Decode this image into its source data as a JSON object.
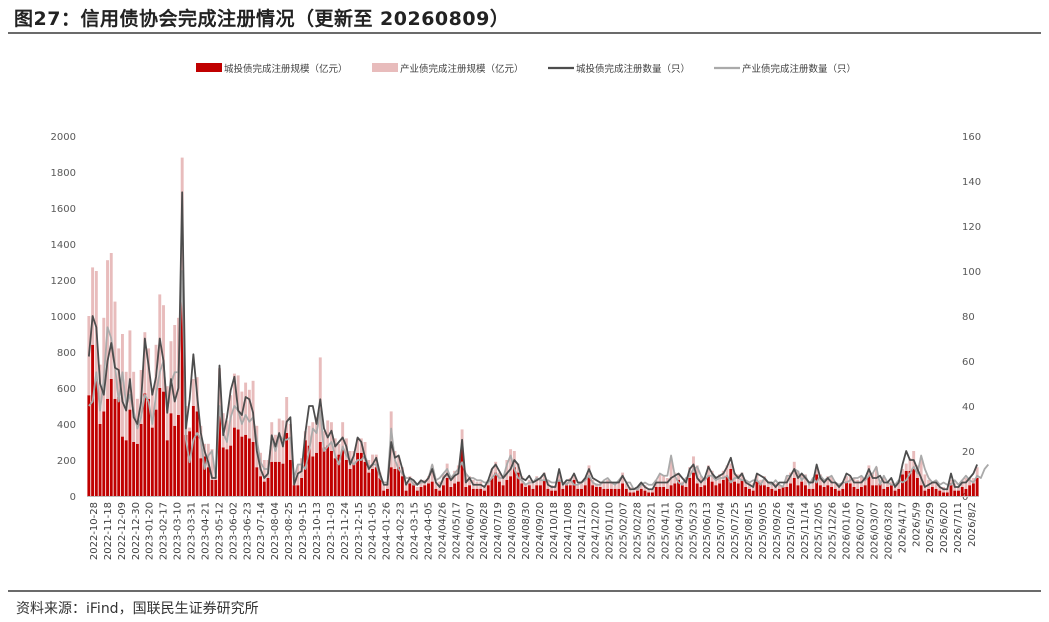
{
  "title": "图27：信用债协会完成注册情况（更新至 20260809）",
  "source": "资料来源：iFind，国联民生证券研究所",
  "chart_data": {
    "type": "bar+line",
    "stacked_bars": true,
    "legend_position": "top",
    "grid": false,
    "y_left": {
      "min": 0,
      "max": 2000,
      "ticks": [
        0,
        200,
        400,
        600,
        800,
        1000,
        1200,
        1400,
        1600,
        1800,
        2000
      ]
    },
    "y_right": {
      "min": 0,
      "max": 160,
      "ticks": [
        0,
        20,
        40,
        60,
        80,
        100,
        120,
        140,
        160
      ]
    },
    "x_tick_labels": [
      "2022-10-28",
      "2022-11-18",
      "2022-12-09",
      "2022-12-30",
      "2023-01-20",
      "2023-02-17",
      "2023-03-10",
      "2023-03-31",
      "2023-04-21",
      "2023-05-12",
      "2023-06-02",
      "2023-06-23",
      "2023-07-14",
      "2023-08-04",
      "2023-08-25",
      "2023-09-15",
      "2023-10-13",
      "2023-11-03",
      "2023-11-24",
      "2023-12-15",
      "2024-01-05",
      "2024-01-26",
      "2024-02-23",
      "2024-03-15",
      "2024-04-05",
      "2024/04/26",
      "2024/05/17",
      "2024/06/07",
      "2024/06/28",
      "2024/07/19",
      "2024/08/09",
      "2024/08/30",
      "2024/09/20",
      "2024/10/18",
      "2024/11/08",
      "2024/11/29",
      "2024/12/20",
      "2025/01/10",
      "2025/02/07",
      "2025/02/28",
      "2025/03/21",
      "2025/04/11",
      "2025/04/30",
      "2025/05/23",
      "2025/06/13",
      "2025/07/04",
      "2025/07/25",
      "2025/08/15",
      "2025/09/05",
      "2025/09/26",
      "2025/10/24",
      "2025/11/14",
      "2025/12/05",
      "2025/12/26",
      "2026/01/16",
      "2026/02/07",
      "2026/03/07",
      "2026/03/28",
      "2026/4/17",
      "2026/5/9",
      "2026/5/29",
      "2026/6/20",
      "2026/7/11",
      "2026/8/2"
    ],
    "series": [
      {
        "name": "城投债完成注册规模（亿元）",
        "kind": "bar",
        "axis": "left",
        "color": "#c00000",
        "values": [
          560,
          840,
          650,
          400,
          470,
          540,
          650,
          540,
          550,
          330,
          310,
          480,
          300,
          290,
          400,
          570,
          540,
          380,
          480,
          600,
          580,
          310,
          460,
          390,
          450,
          1190,
          340,
          360,
          500,
          470,
          210,
          220,
          160,
          90,
          90,
          450,
          270,
          260,
          280,
          380,
          370,
          330,
          340,
          320,
          300,
          160,
          110,
          80,
          100,
          190,
          190,
          190,
          180,
          350,
          200,
          60,
          60,
          100,
          310,
          280,
          220,
          240,
          300,
          270,
          280,
          250,
          210,
          230,
          260,
          200,
          150,
          180,
          240,
          240,
          190,
          130,
          150,
          160,
          100,
          30,
          40,
          160,
          150,
          160,
          110,
          30,
          70,
          60,
          30,
          50,
          60,
          70,
          80,
          40,
          30,
          60,
          100,
          50,
          70,
          80,
          270,
          50,
          60,
          40,
          40,
          40,
          30,
          60,
          100,
          130,
          80,
          60,
          90,
          110,
          160,
          130,
          70,
          50,
          60,
          40,
          60,
          60,
          90,
          40,
          30,
          30,
          80,
          40,
          60,
          60,
          90,
          40,
          40,
          60,
          110,
          60,
          50,
          50,
          40,
          40,
          40,
          40,
          40,
          70,
          40,
          20,
          20,
          30,
          40,
          30,
          20,
          20,
          50,
          50,
          50,
          40,
          60,
          70,
          90,
          60,
          50,
          100,
          130,
          70,
          50,
          60,
          110,
          80,
          60,
          70,
          90,
          110,
          150,
          80,
          70,
          90,
          50,
          40,
          30,
          80,
          70,
          60,
          50,
          40,
          30,
          40,
          50,
          50,
          70,
          100,
          60,
          80,
          60,
          40,
          40,
          120,
          60,
          50,
          60,
          50,
          40,
          30,
          40,
          80,
          70,
          50,
          40,
          50,
          60,
          110,
          60,
          60,
          70,
          40,
          50,
          60,
          30,
          40,
          120,
          140,
          140,
          150,
          100,
          60,
          30,
          40,
          50,
          40,
          30,
          20,
          20,
          70,
          30,
          30,
          50,
          40,
          60,
          70,
          100
        ]
      },
      {
        "name": "产业债完成注册规模（亿元）",
        "kind": "bar",
        "axis": "left",
        "color": "#e8bcbc",
        "values": [
          440,
          430,
          600,
          330,
          520,
          770,
          700,
          540,
          270,
          570,
          380,
          440,
          390,
          250,
          300,
          340,
          280,
          220,
          360,
          520,
          480,
          300,
          400,
          560,
          540,
          690,
          160,
          20,
          150,
          190,
          180,
          70,
          130,
          170,
          20,
          260,
          190,
          160,
          280,
          300,
          300,
          250,
          290,
          270,
          340,
          230,
          130,
          120,
          100,
          220,
          150,
          240,
          240,
          200,
          200,
          50,
          110,
          110,
          50,
          110,
          190,
          200,
          470,
          90,
          140,
          160,
          110,
          60,
          150,
          120,
          100,
          70,
          80,
          80,
          110,
          70,
          80,
          70,
          30,
          30,
          30,
          310,
          100,
          60,
          50,
          50,
          40,
          20,
          20,
          30,
          30,
          40,
          90,
          40,
          50,
          60,
          80,
          50,
          70,
          90,
          100,
          70,
          50,
          50,
          40,
          40,
          30,
          30,
          50,
          60,
          50,
          50,
          110,
          150,
          90,
          50,
          40,
          20,
          30,
          30,
          50,
          40,
          40,
          40,
          30,
          30,
          40,
          30,
          20,
          40,
          20,
          20,
          30,
          40,
          60,
          30,
          20,
          20,
          40,
          50,
          30,
          20,
          40,
          60,
          30,
          30,
          10,
          10,
          20,
          30,
          20,
          20,
          40,
          70,
          60,
          60,
          150,
          60,
          30,
          20,
          50,
          60,
          90,
          100,
          60,
          40,
          60,
          60,
          40,
          50,
          50,
          60,
          30,
          50,
          50,
          40,
          40,
          30,
          40,
          40,
          20,
          50,
          30,
          20,
          40,
          20,
          10,
          60,
          60,
          90,
          80,
          40,
          60,
          20,
          50,
          30,
          60,
          40,
          50,
          60,
          30,
          20,
          30,
          30,
          40,
          50,
          50,
          60,
          40,
          60,
          70,
          100,
          20,
          60,
          30,
          20,
          20,
          40,
          30,
          40,
          70,
          100,
          70,
          150,
          90,
          50,
          30,
          40,
          20,
          30,
          20,
          20,
          40,
          20,
          40,
          60,
          40,
          30,
          60,
          50,
          90,
          110
        ]
      },
      {
        "name": "城投债完成注册数量（只）",
        "kind": "line",
        "axis": "right",
        "color": "#4d4d4d",
        "values": [
          62,
          80,
          75,
          50,
          45,
          60,
          68,
          57,
          56,
          42,
          38,
          52,
          35,
          32,
          42,
          70,
          58,
          45,
          53,
          70,
          60,
          37,
          52,
          42,
          48,
          135,
          30,
          43,
          63,
          45,
          28,
          20,
          15,
          8,
          8,
          58,
          27,
          35,
          47,
          53,
          38,
          36,
          44,
          43,
          37,
          20,
          12,
          8,
          10,
          27,
          22,
          28,
          22,
          33,
          35,
          5,
          10,
          11,
          28,
          40,
          40,
          32,
          43,
          30,
          26,
          29,
          22,
          24,
          26,
          22,
          14,
          18,
          26,
          24,
          17,
          12,
          14,
          17,
          10,
          5,
          5,
          24,
          17,
          18,
          12,
          5,
          8,
          7,
          5,
          7,
          6,
          8,
          12,
          6,
          4,
          8,
          10,
          7,
          9,
          10,
          25,
          6,
          8,
          5,
          5,
          5,
          4,
          7,
          12,
          14,
          11,
          8,
          10,
          12,
          16,
          14,
          8,
          7,
          9,
          6,
          7,
          8,
          10,
          5,
          4,
          4,
          12,
          5,
          7,
          7,
          10,
          6,
          6,
          8,
          12,
          8,
          7,
          6,
          6,
          6,
          6,
          6,
          6,
          9,
          6,
          3,
          3,
          4,
          6,
          4,
          3,
          3,
          6,
          6,
          6,
          6,
          8,
          9,
          10,
          8,
          6,
          12,
          14,
          8,
          6,
          8,
          13,
          10,
          8,
          9,
          10,
          13,
          17,
          10,
          8,
          10,
          6,
          5,
          4,
          10,
          9,
          8,
          6,
          6,
          4,
          6,
          6,
          6,
          9,
          12,
          8,
          10,
          8,
          6,
          6,
          14,
          8,
          6,
          8,
          6,
          6,
          4,
          6,
          10,
          9,
          6,
          6,
          6,
          8,
          12,
          8,
          8,
          9,
          6,
          6,
          8,
          4,
          6,
          14,
          20,
          16,
          16,
          12,
          8,
          4,
          5,
          6,
          6,
          4,
          3,
          3,
          10,
          4,
          4,
          6,
          6,
          8,
          10,
          14
        ]
      },
      {
        "name": "产业债完成注册数量（只）",
        "kind": "line",
        "axis": "right",
        "color": "#aaaaaa",
        "values": [
          40,
          42,
          55,
          38,
          52,
          75,
          70,
          58,
          42,
          55,
          40,
          45,
          38,
          30,
          35,
          45,
          42,
          32,
          45,
          55,
          60,
          38,
          50,
          55,
          55,
          100,
          25,
          15,
          25,
          28,
          25,
          12,
          18,
          20,
          8,
          40,
          28,
          24,
          35,
          40,
          38,
          32,
          36,
          33,
          35,
          25,
          15,
          12,
          12,
          26,
          20,
          27,
          25,
          25,
          26,
          8,
          14,
          14,
          12,
          20,
          30,
          28,
          38,
          20,
          22,
          24,
          18,
          14,
          22,
          18,
          16,
          14,
          16,
          16,
          18,
          13,
          14,
          14,
          8,
          6,
          6,
          30,
          16,
          12,
          10,
          8,
          8,
          5,
          5,
          6,
          6,
          8,
          14,
          7,
          8,
          10,
          12,
          8,
          10,
          12,
          15,
          10,
          8,
          8,
          7,
          7,
          6,
          6,
          8,
          10,
          8,
          8,
          14,
          18,
          12,
          8,
          7,
          5,
          6,
          6,
          8,
          7,
          7,
          7,
          6,
          6,
          7,
          6,
          5,
          7,
          5,
          5,
          6,
          7,
          9,
          6,
          5,
          5,
          7,
          8,
          6,
          5,
          7,
          9,
          6,
          6,
          3,
          3,
          5,
          6,
          5,
          5,
          7,
          10,
          9,
          9,
          18,
          9,
          6,
          5,
          8,
          9,
          12,
          13,
          9,
          7,
          9,
          9,
          7,
          8,
          8,
          9,
          6,
          8,
          8,
          7,
          7,
          6,
          7,
          7,
          5,
          8,
          6,
          5,
          7,
          5,
          4,
          9,
          9,
          12,
          11,
          7,
          9,
          5,
          8,
          6,
          9,
          7,
          8,
          9,
          6,
          5,
          6,
          6,
          7,
          8,
          8,
          9,
          7,
          9,
          10,
          13,
          5,
          9,
          6,
          5,
          5,
          7,
          6,
          7,
          10,
          13,
          10,
          18,
          12,
          8,
          6,
          7,
          5,
          6,
          5,
          5,
          7,
          5,
          7,
          9,
          7,
          6,
          9,
          8,
          12,
          14
        ]
      }
    ]
  }
}
